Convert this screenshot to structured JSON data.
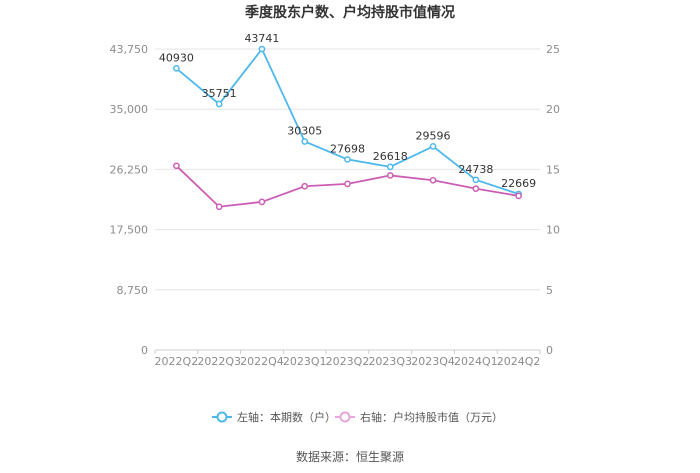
{
  "chart_data": {
    "type": "line",
    "title": "季度股东户数、户均持股市值情况",
    "categories": [
      "2022Q2",
      "2022Q3",
      "2022Q4",
      "2023Q1",
      "2023Q2",
      "2023Q3",
      "2023Q4",
      "2024Q1",
      "2024Q2"
    ],
    "series": [
      {
        "name": "左轴：本期数（户）",
        "axis": "left",
        "color": "#4db8ec",
        "values": [
          40930,
          35751,
          43741,
          30305,
          27698,
          26618,
          29596,
          24738,
          22669
        ],
        "labels": [
          "40930",
          "35751",
          "43741",
          "30305",
          "27698",
          "26618",
          "29596",
          "24738",
          "22669"
        ]
      },
      {
        "name": "右轴：户均持股市值（万元）",
        "axis": "right",
        "color": "#cc5db5",
        "values": [
          15.3,
          11.9,
          12.3,
          13.6,
          13.8,
          14.5,
          14.1,
          13.4,
          12.8
        ]
      }
    ],
    "left_axis": {
      "min": 0,
      "max": 43750,
      "ticks": [
        0,
        8750,
        17500,
        26250,
        35000,
        43750
      ],
      "tick_labels": [
        "0",
        "8,750",
        "17,500",
        "26,250",
        "35,000",
        "43,750"
      ]
    },
    "right_axis": {
      "min": 0,
      "max": 25,
      "ticks": [
        0,
        5,
        10,
        15,
        20,
        25
      ],
      "tick_labels": [
        "0",
        "5",
        "10",
        "15",
        "20",
        "25"
      ]
    },
    "grid": true,
    "legend_position": "bottom"
  },
  "source": "数据来源：恒生聚源"
}
